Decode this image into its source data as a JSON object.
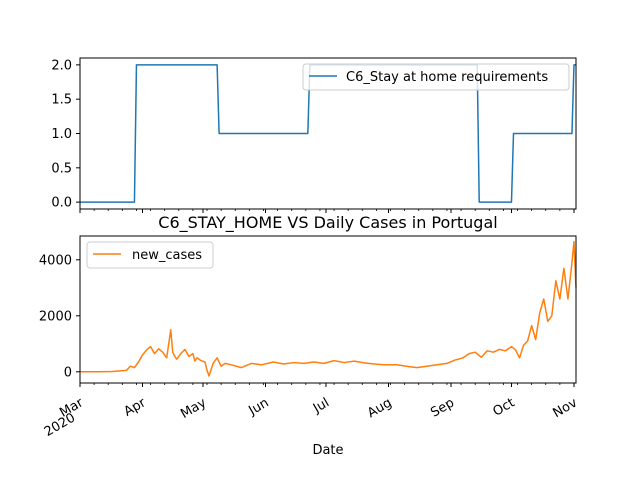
{
  "chart_data": [
    {
      "type": "line",
      "title": "",
      "xlabel": "",
      "ylabel": "",
      "xlim": [
        "2020-03-01",
        "2020-11-02"
      ],
      "ylim": [
        -0.1,
        2.1
      ],
      "yticks": [
        "0.0",
        "0.5",
        "1.0",
        "1.5",
        "2.0"
      ],
      "legend_position": "upper-right",
      "series": [
        {
          "name": "C6_Stay at home requirements",
          "color": "#1f77b4",
          "x": [
            "2020-03-01",
            "2020-03-28",
            "2020-03-29",
            "2020-05-08",
            "2020-05-09",
            "2020-06-22",
            "2020-06-23",
            "2020-09-14",
            "2020-09-15",
            "2020-10-01",
            "2020-10-02",
            "2020-10-31",
            "2020-11-01",
            "2020-11-02"
          ],
          "values": [
            0,
            0,
            2,
            2,
            1,
            1,
            2,
            2,
            0,
            0,
            1,
            1,
            2,
            2
          ]
        }
      ]
    },
    {
      "type": "line",
      "title": "C6_STAY_HOME VS Daily Cases in Portugal",
      "xlabel": "Date",
      "ylabel": "",
      "xlim": [
        "2020-03-01",
        "2020-11-02"
      ],
      "ylim": [
        -400,
        4850
      ],
      "yticks": [
        "0",
        "2000",
        "4000"
      ],
      "xticks": [
        {
          "date": "2020-03-01",
          "label": "Mar",
          "label2": "2020"
        },
        {
          "date": "2020-04-01",
          "label": "Apr"
        },
        {
          "date": "2020-05-01",
          "label": "May"
        },
        {
          "date": "2020-06-01",
          "label": "Jun"
        },
        {
          "date": "2020-07-01",
          "label": "Jul"
        },
        {
          "date": "2020-08-01",
          "label": "Aug"
        },
        {
          "date": "2020-09-01",
          "label": "Sep"
        },
        {
          "date": "2020-10-01",
          "label": "Oct"
        },
        {
          "date": "2020-11-01",
          "label": "Nov"
        }
      ],
      "legend_position": "upper-left",
      "series": [
        {
          "name": "new_cases",
          "color": "#ff7f0e",
          "x": [
            "2020-03-01",
            "2020-03-10",
            "2020-03-17",
            "2020-03-24",
            "2020-03-26",
            "2020-03-28",
            "2020-03-30",
            "2020-04-01",
            "2020-04-03",
            "2020-04-05",
            "2020-04-07",
            "2020-04-09",
            "2020-04-11",
            "2020-04-13",
            "2020-04-15",
            "2020-04-16",
            "2020-04-17",
            "2020-04-18",
            "2020-04-20",
            "2020-04-22",
            "2020-04-24",
            "2020-04-26",
            "2020-04-27",
            "2020-04-28",
            "2020-04-30",
            "2020-05-02",
            "2020-05-03",
            "2020-05-04",
            "2020-05-06",
            "2020-05-08",
            "2020-05-10",
            "2020-05-12",
            "2020-05-15",
            "2020-05-20",
            "2020-05-25",
            "2020-05-30",
            "2020-06-05",
            "2020-06-10",
            "2020-06-15",
            "2020-06-20",
            "2020-06-25",
            "2020-06-30",
            "2020-07-05",
            "2020-07-10",
            "2020-07-15",
            "2020-07-20",
            "2020-07-25",
            "2020-07-30",
            "2020-08-05",
            "2020-08-10",
            "2020-08-15",
            "2020-08-20",
            "2020-08-25",
            "2020-08-30",
            "2020-09-03",
            "2020-09-07",
            "2020-09-10",
            "2020-09-13",
            "2020-09-16",
            "2020-09-19",
            "2020-09-22",
            "2020-09-25",
            "2020-09-28",
            "2020-10-01",
            "2020-10-03",
            "2020-10-05",
            "2020-10-07",
            "2020-10-09",
            "2020-10-11",
            "2020-10-13",
            "2020-10-15",
            "2020-10-17",
            "2020-10-19",
            "2020-10-21",
            "2020-10-23",
            "2020-10-25",
            "2020-10-27",
            "2020-10-29",
            "2020-10-31",
            "2020-11-01",
            "2020-11-02"
          ],
          "values": [
            0,
            0,
            10,
            50,
            200,
            150,
            350,
            600,
            780,
            900,
            650,
            820,
            700,
            500,
            1500,
            700,
            550,
            450,
            650,
            800,
            550,
            650,
            380,
            500,
            400,
            350,
            50,
            -150,
            300,
            500,
            200,
            300,
            250,
            150,
            300,
            250,
            350,
            280,
            330,
            300,
            350,
            300,
            400,
            330,
            380,
            320,
            280,
            250,
            250,
            200,
            150,
            200,
            250,
            300,
            420,
            500,
            650,
            700,
            520,
            750,
            700,
            800,
            750,
            900,
            780,
            500,
            950,
            1100,
            1650,
            1150,
            2100,
            2600,
            1800,
            2000,
            3250,
            2600,
            3700,
            2600,
            3900,
            4650,
            3000
          ]
        }
      ]
    }
  ]
}
